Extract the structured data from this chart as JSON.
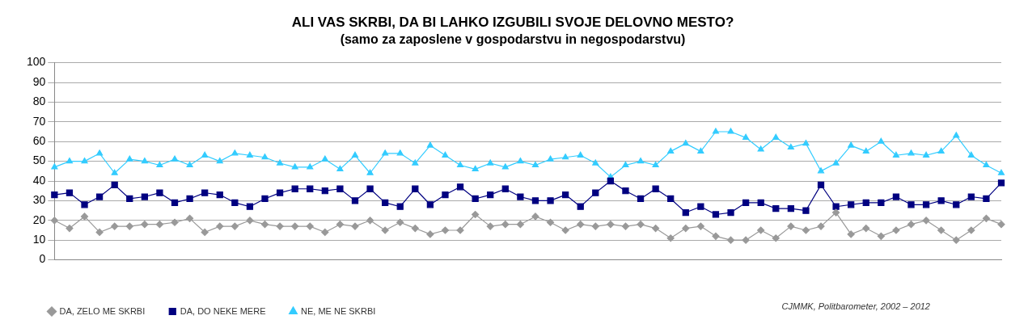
{
  "chart_data": {
    "type": "line",
    "title": "ALI VAS SKRBI, DA BI LAHKO IZGUBILI SVOJE DELOVNO MESTO?",
    "subtitle": "(samo za zaposlene v gospodarstvu in negospodarstvu)",
    "categories": [
      null,
      null,
      null,
      null,
      null,
      null,
      null,
      null,
      null,
      null,
      null,
      null,
      null,
      null,
      null,
      null,
      null,
      null,
      null,
      null,
      null,
      null,
      null,
      null,
      null,
      null,
      null,
      null,
      null,
      null,
      null,
      null,
      null,
      null,
      null,
      null,
      null,
      null,
      null,
      null,
      null,
      null,
      null,
      null,
      null,
      null,
      null,
      null,
      null,
      null,
      null,
      null,
      null,
      null,
      null,
      null,
      null,
      null,
      null,
      null,
      null,
      null,
      null,
      null
    ],
    "series": [
      {
        "name": "DA, ZELO ME SKRBI",
        "color": "#999999",
        "marker": "diamond",
        "values": [
          20,
          16,
          22,
          14,
          17,
          17,
          18,
          18,
          19,
          21,
          14,
          17,
          17,
          20,
          18,
          17,
          17,
          17,
          14,
          18,
          17,
          20,
          15,
          19,
          16,
          13,
          15,
          15,
          23,
          17,
          18,
          18,
          22,
          19,
          15,
          18,
          17,
          18,
          17,
          18,
          16,
          11,
          16,
          17,
          12,
          10,
          10,
          15,
          11,
          17,
          15,
          17,
          24,
          13,
          16,
          12,
          15,
          18,
          20,
          15,
          10,
          15,
          21,
          18
        ]
      },
      {
        "name": "DA, DO NEKE MERE",
        "color": "#000080",
        "marker": "square",
        "values": [
          33,
          34,
          28,
          32,
          38,
          31,
          32,
          34,
          29,
          31,
          34,
          33,
          29,
          27,
          31,
          34,
          36,
          36,
          35,
          36,
          30,
          36,
          29,
          27,
          36,
          28,
          33,
          37,
          31,
          33,
          36,
          32,
          30,
          30,
          33,
          27,
          34,
          40,
          35,
          31,
          36,
          31,
          24,
          27,
          23,
          24,
          29,
          29,
          26,
          26,
          25,
          38,
          27,
          28,
          29,
          29,
          32,
          28,
          28,
          30,
          28,
          32,
          31,
          39
        ]
      },
      {
        "name": "NE, ME NE SKRBI",
        "color": "#33ccff",
        "marker": "triangle",
        "values": [
          47,
          50,
          50,
          54,
          44,
          51,
          50,
          48,
          51,
          48,
          53,
          50,
          54,
          53,
          52,
          49,
          47,
          47,
          51,
          46,
          53,
          44,
          54,
          54,
          49,
          58,
          53,
          48,
          46,
          49,
          47,
          50,
          48,
          51,
          52,
          53,
          49,
          42,
          48,
          50,
          48,
          55,
          59,
          55,
          65,
          65,
          62,
          56,
          62,
          57,
          59,
          45,
          49,
          58,
          55,
          60,
          53,
          54,
          53,
          55,
          63,
          53,
          48,
          44
        ]
      }
    ],
    "ylim": [
      0,
      100
    ],
    "yticks": [
      0,
      10,
      20,
      30,
      40,
      50,
      60,
      70,
      80,
      90,
      100
    ],
    "grid": "y",
    "legend": "bottom left",
    "annotations": [
      "CJMMK, Politbarometer, 2002 – 2012"
    ]
  }
}
